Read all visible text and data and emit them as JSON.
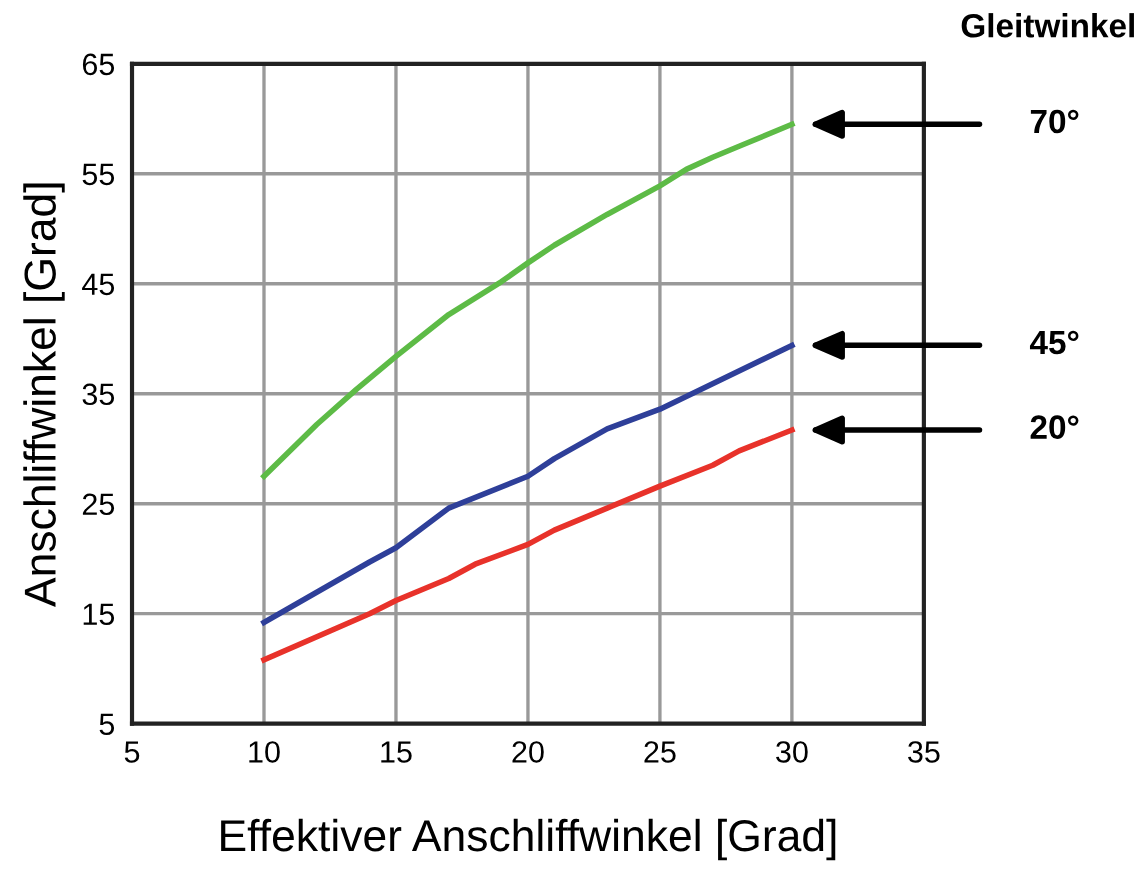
{
  "chart_data": {
    "type": "line",
    "xlabel": "Effektiver Anschliffwinkel [Grad]",
    "ylabel": "Anschliffwinkel [Grad]",
    "xlim": [
      5,
      35
    ],
    "xticks": [
      5,
      10,
      15,
      20,
      25,
      30,
      35
    ],
    "ylim": [
      5,
      65
    ],
    "yticks": [
      5,
      15,
      25,
      35,
      45,
      55,
      65
    ],
    "grid": true,
    "marker": "none",
    "line_style": "solid",
    "series": [
      {
        "color": "#5dbb46",
        "x": [
          10,
          12,
          13.5,
          15,
          17,
          19,
          20,
          21,
          23,
          25,
          26,
          27,
          28,
          30
        ],
        "values": [
          27.5,
          32.2,
          35.4,
          38.4,
          42.2,
          45.2,
          46.9,
          48.5,
          51.3,
          53.9,
          55.4,
          56.5,
          57.5,
          59.5
        ]
      },
      {
        "color": "#2e3f99",
        "x": [
          10,
          14,
          15,
          17,
          20,
          21,
          23,
          25,
          30
        ],
        "values": [
          14.2,
          19.7,
          21.0,
          24.6,
          27.5,
          29.1,
          31.8,
          33.6,
          39.4
        ]
      },
      {
        "color": "#e8322a",
        "x": [
          10,
          14,
          15,
          17,
          18,
          20,
          21,
          23,
          25,
          27,
          28,
          30
        ],
        "values": [
          10.8,
          15.0,
          16.2,
          18.2,
          19.5,
          21.3,
          22.6,
          24.6,
          26.6,
          28.5,
          29.8,
          31.7
        ]
      }
    ],
    "annotations": [
      "Gleitwinkel",
      "70°",
      "45°",
      "20°"
    ]
  }
}
